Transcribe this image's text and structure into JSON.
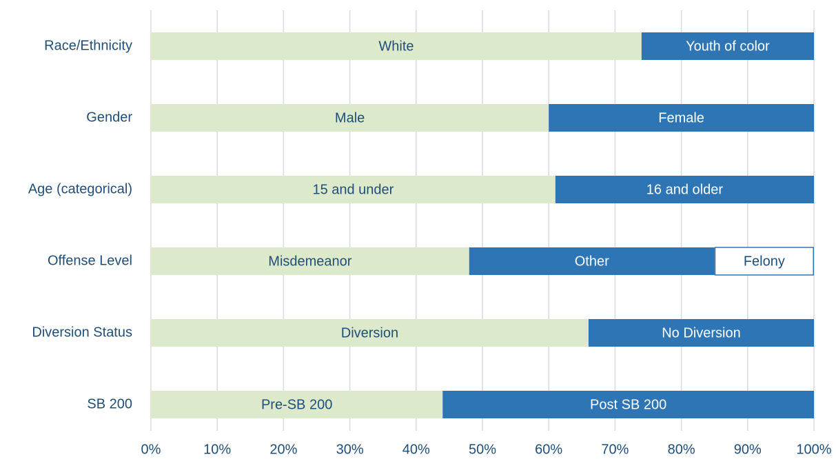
{
  "chart_data": {
    "type": "bar",
    "orientation": "horizontal",
    "stacked": true,
    "categories": [
      "Race/Ethnicity",
      "Gender",
      "Age (categorical)",
      "Offense Level",
      "Diversion Status",
      "SB 200"
    ],
    "segments": [
      [
        {
          "name": "White",
          "value": 74,
          "color": "#dde9cb"
        },
        {
          "name": "Youth of color",
          "value": 26,
          "color": "#2e75b6"
        }
      ],
      [
        {
          "name": "Male",
          "value": 60,
          "color": "#dde9cb"
        },
        {
          "name": "Female",
          "value": 40,
          "color": "#2e75b6"
        }
      ],
      [
        {
          "name": "15 and under",
          "value": 61,
          "color": "#dde9cb"
        },
        {
          "name": "16 and older",
          "value": 39,
          "color": "#2e75b6"
        }
      ],
      [
        {
          "name": "Misdemeanor",
          "value": 48,
          "color": "#dde9cb"
        },
        {
          "name": "Other",
          "value": 37,
          "color": "#2e75b6"
        },
        {
          "name": "Felony",
          "value": 15,
          "color": "#ffffff",
          "edgecolor": "#2e75b6"
        }
      ],
      [
        {
          "name": "Diversion",
          "value": 66,
          "color": "#dde9cb"
        },
        {
          "name": "No Diversion",
          "value": 34,
          "color": "#2e75b6"
        }
      ],
      [
        {
          "name": "Pre-SB 200",
          "value": 44,
          "color": "#dde9cb"
        },
        {
          "name": "Post SB 200",
          "value": 56,
          "color": "#2e75b6"
        }
      ]
    ],
    "xlim": [
      0,
      100
    ],
    "xticks": [
      {
        "value": 0,
        "label": "0%"
      },
      {
        "value": 10,
        "label": "10%"
      },
      {
        "value": 20,
        "label": "20%"
      },
      {
        "value": 30,
        "label": "30%"
      },
      {
        "value": 40,
        "label": "40%"
      },
      {
        "value": 50,
        "label": "50%"
      },
      {
        "value": 60,
        "label": "60%"
      },
      {
        "value": 70,
        "label": "70%"
      },
      {
        "value": 80,
        "label": "80%"
      },
      {
        "value": 90,
        "label": "90%"
      },
      {
        "value": 100,
        "label": "100%"
      }
    ],
    "grid": true
  }
}
